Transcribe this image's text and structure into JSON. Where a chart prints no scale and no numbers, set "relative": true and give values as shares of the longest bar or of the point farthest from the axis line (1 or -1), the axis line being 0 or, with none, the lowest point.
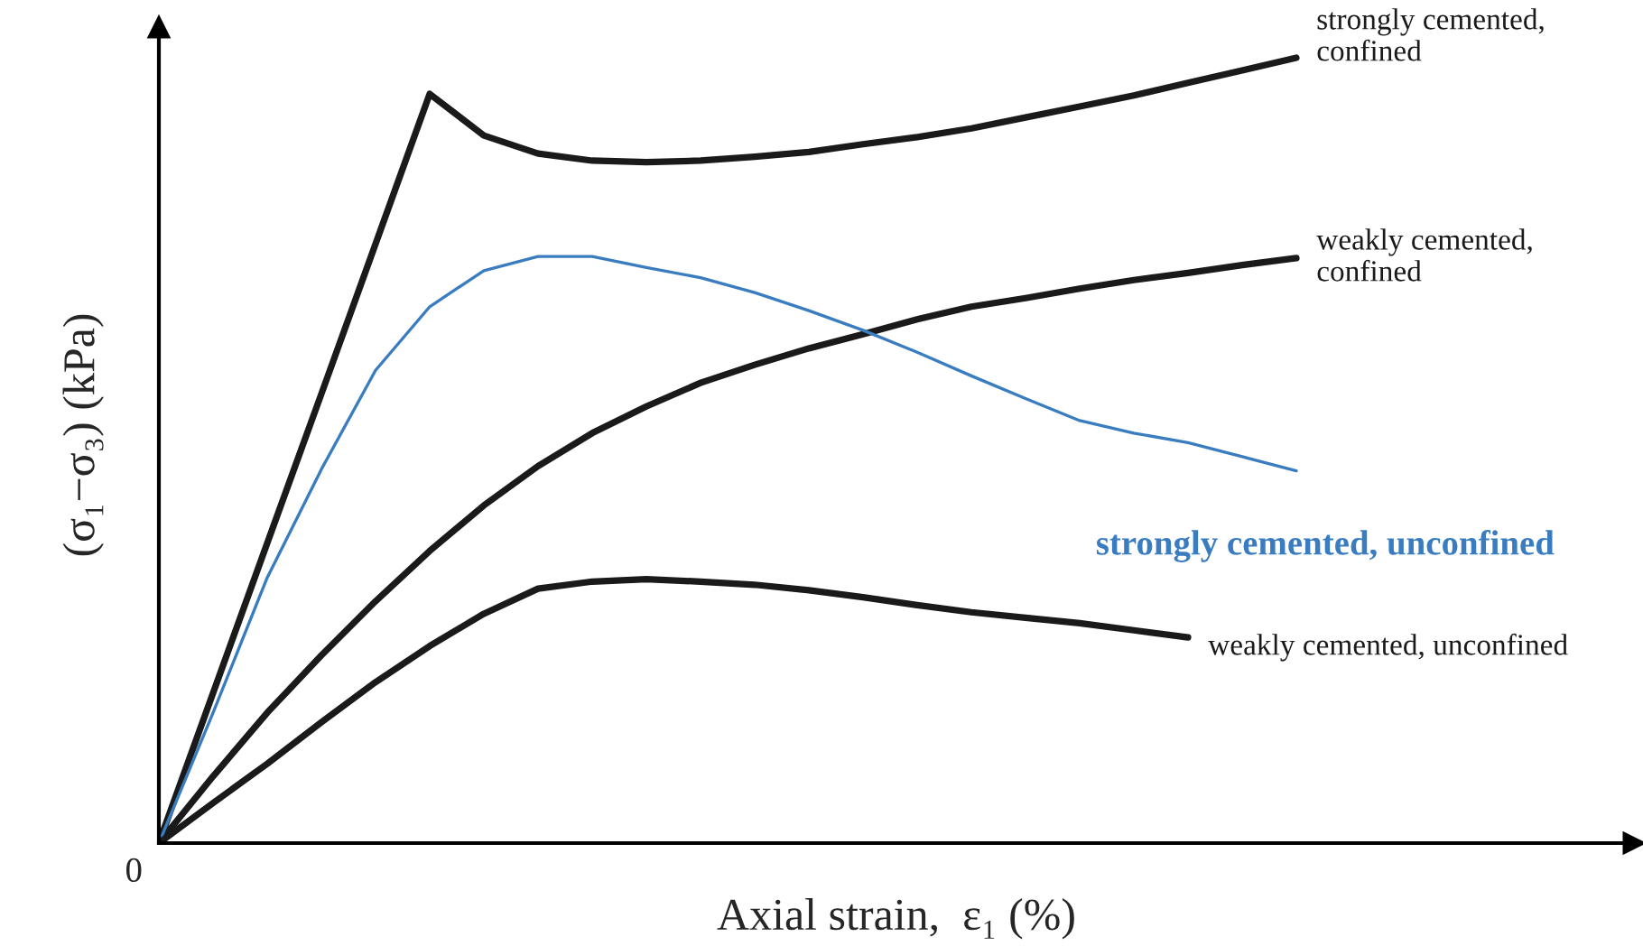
{
  "chart_data": {
    "type": "line",
    "relative": true,
    "xlabel": "Axial strain,  ε₁ (%)",
    "ylabel": "(σ₁−σ₃) (kPa)",
    "annotations": [
      "0"
    ],
    "legend": false,
    "marker": "none",
    "line_style": "solid",
    "categories": [
      null,
      null,
      null,
      null,
      null,
      null,
      null,
      null,
      null,
      null,
      null,
      null,
      null,
      null,
      null,
      null,
      null,
      null,
      null,
      null,
      null,
      null
    ],
    "series": [
      {
        "name": "strongly cemented,\nconfined",
        "color": "#1a1a1a",
        "values": [
          0,
          0.191,
          0.382,
          0.572,
          0.763,
          0.954,
          0.901,
          0.878,
          0.869,
          0.867,
          0.869,
          0.874,
          0.88,
          0.89,
          0.899,
          0.91,
          0.924,
          0.938,
          0.952,
          0.968,
          0.984,
          1.0
        ]
      },
      {
        "name": "weakly cemented,\nconfined",
        "color": "#1a1a1a",
        "values": [
          0,
          0.085,
          0.166,
          0.239,
          0.308,
          0.372,
          0.43,
          0.48,
          0.522,
          0.556,
          0.586,
          0.609,
          0.63,
          0.648,
          0.667,
          0.683,
          0.694,
          0.706,
          0.717,
          0.726,
          0.736,
          0.745
        ]
      },
      {
        "name": "strongly cemented, unconfined",
        "color": "#3a7cc0",
        "values": [
          0,
          0.166,
          0.338,
          0.476,
          0.602,
          0.683,
          0.729,
          0.747,
          0.747,
          0.733,
          0.72,
          0.701,
          0.678,
          0.653,
          0.625,
          0.595,
          0.566,
          0.538,
          0.522,
          0.51,
          0.492,
          0.474
        ]
      },
      {
        "name": "weakly cemented, unconfined",
        "color": "#1a1a1a",
        "values": [
          0,
          0.051,
          0.101,
          0.154,
          0.205,
          0.251,
          0.292,
          0.324,
          0.333,
          0.336,
          0.333,
          0.329,
          0.322,
          0.313,
          0.303,
          0.294,
          0.287,
          0.28,
          0.271,
          0.262,
          null,
          null
        ]
      }
    ]
  }
}
